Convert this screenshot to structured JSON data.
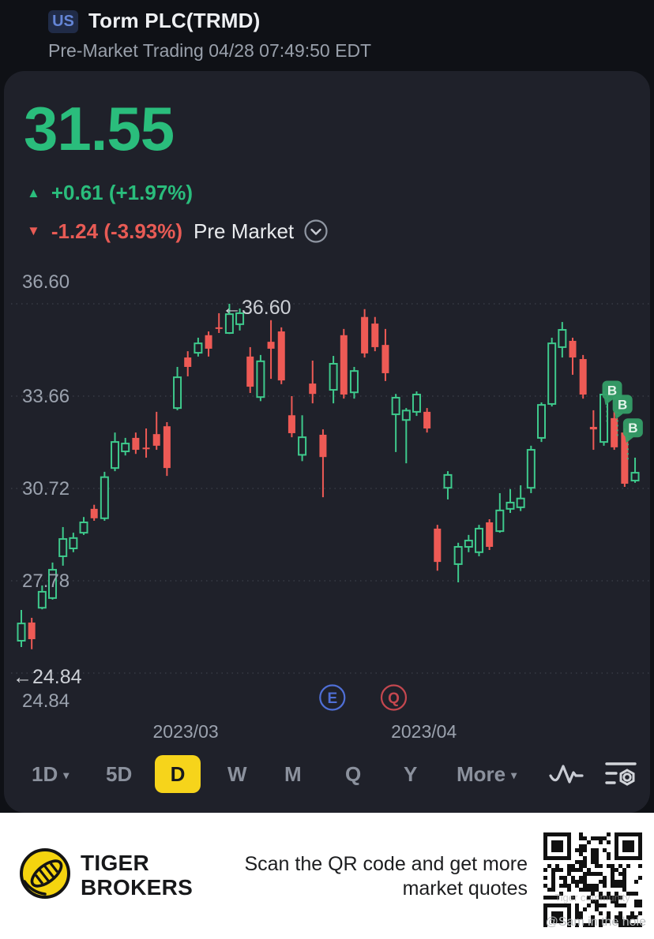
{
  "header": {
    "market_badge": "US",
    "title": "Torm PLC(TRMD)",
    "subtitle": "Pre-Market Trading 04/28 07:49:50 EDT"
  },
  "quote": {
    "price": "31.55",
    "change_text": "+0.61 (+1.97%)",
    "premarket_change_text": "-1.24 (-3.93%)",
    "premarket_label": "Pre Market"
  },
  "glyphs": {
    "up": "▲",
    "down": "▼",
    "caret": "▾"
  },
  "colors": {
    "green": "#2abd7c",
    "red": "#e85b55",
    "candle_green": "#3ec98c",
    "candle_red": "#ee5a55",
    "grid": "#3a3e48",
    "axis_text": "#9ba2ae",
    "annotation_text": "#cdd0d6",
    "marker_green": "#359e67",
    "event_e": "#4f6fd6",
    "event_q": "#c4474f",
    "selected_yellow": "#f6d41b"
  },
  "chart_data": {
    "type": "candlestick",
    "timeframe": "D",
    "grid_on": true,
    "y_axis_labels": [
      "36.60",
      "33.66",
      "30.72",
      "27.78",
      "24.84"
    ],
    "grid_values": [
      36.6,
      33.66,
      30.72,
      27.78,
      24.84
    ],
    "ylim": [
      24.84,
      36.6
    ],
    "high_annotation": "←36.60",
    "low_annotation": "←24.84",
    "bottom_axis_label": "24.84",
    "x_axis_labels": [
      {
        "label": "2023/03",
        "index": 15.8
      },
      {
        "label": "2023/04",
        "index": 38.7
      }
    ],
    "event_badges": [
      {
        "letter": "E",
        "index": 29.9
      },
      {
        "letter": "Q",
        "index": 35.8
      }
    ],
    "buy_markers": [
      {
        "label": "B",
        "index": 56,
        "price": 33.85
      },
      {
        "label": "B",
        "index": 57,
        "price": 33.4
      },
      {
        "label": "B",
        "index": 58,
        "price": 32.65
      }
    ],
    "candles": [
      [
        25.87,
        26.85,
        25.67,
        26.42
      ],
      [
        26.45,
        26.6,
        25.6,
        25.92
      ],
      [
        26.92,
        27.63,
        26.87,
        27.43
      ],
      [
        27.23,
        28.36,
        27.18,
        28.13
      ],
      [
        28.56,
        29.49,
        28.26,
        29.11
      ],
      [
        28.81,
        29.31,
        28.69,
        29.14
      ],
      [
        29.31,
        29.81,
        29.24,
        29.64
      ],
      [
        30.07,
        30.2,
        29.69,
        29.77
      ],
      [
        29.77,
        31.25,
        29.69,
        31.08
      ],
      [
        31.37,
        32.5,
        31.27,
        32.2
      ],
      [
        31.9,
        32.33,
        31.77,
        32.15
      ],
      [
        32.33,
        32.5,
        31.82,
        31.95
      ],
      [
        32.02,
        32.63,
        31.7,
        31.97
      ],
      [
        32.45,
        33.16,
        31.95,
        32.08
      ],
      [
        32.7,
        32.83,
        31.12,
        31.37
      ],
      [
        33.28,
        34.59,
        33.21,
        34.26
      ],
      [
        34.89,
        35.09,
        34.29,
        34.59
      ],
      [
        35.04,
        35.52,
        34.92,
        35.34
      ],
      [
        35.6,
        35.72,
        34.92,
        35.17
      ],
      [
        35.85,
        36.3,
        35.67,
        35.8
      ],
      [
        35.67,
        36.6,
        35.64,
        36.27
      ],
      [
        35.95,
        36.45,
        35.75,
        36.3
      ],
      [
        34.92,
        35.22,
        33.76,
        33.96
      ],
      [
        33.63,
        34.97,
        33.5,
        34.77
      ],
      [
        35.39,
        36.08,
        34.21,
        35.17
      ],
      [
        35.72,
        35.85,
        34.04,
        34.16
      ],
      [
        33.05,
        33.66,
        32.35,
        32.48
      ],
      [
        31.79,
        33.05,
        31.59,
        32.35
      ],
      [
        34.06,
        34.79,
        33.43,
        33.73
      ],
      [
        32.43,
        32.6,
        30.44,
        31.72
      ],
      [
        33.86,
        34.94,
        33.43,
        34.69
      ],
      [
        35.6,
        35.8,
        33.58,
        33.71
      ],
      [
        33.78,
        34.59,
        33.58,
        34.46
      ],
      [
        36.18,
        36.43,
        34.89,
        35.02
      ],
      [
        35.97,
        36.18,
        35.09,
        35.22
      ],
      [
        35.29,
        35.8,
        34.14,
        34.39
      ],
      [
        33.08,
        33.73,
        31.88,
        33.61
      ],
      [
        32.9,
        33.28,
        31.52,
        33.2
      ],
      [
        33.16,
        33.81,
        33.03,
        33.71
      ],
      [
        33.16,
        33.28,
        32.5,
        32.63
      ],
      [
        29.44,
        29.56,
        28.1,
        28.38
      ],
      [
        30.74,
        31.27,
        30.37,
        31.15
      ],
      [
        28.31,
        28.99,
        27.73,
        28.86
      ],
      [
        28.86,
        29.24,
        28.69,
        29.06
      ],
      [
        28.69,
        29.56,
        28.56,
        29.44
      ],
      [
        29.64,
        29.74,
        28.76,
        28.86
      ],
      [
        29.36,
        30.57,
        29.31,
        30.02
      ],
      [
        30.07,
        30.7,
        29.94,
        30.27
      ],
      [
        30.12,
        30.82,
        30.0,
        30.4
      ],
      [
        30.74,
        32.08,
        30.57,
        31.95
      ],
      [
        32.33,
        33.46,
        32.2,
        33.38
      ],
      [
        33.41,
        35.52,
        33.33,
        35.34
      ],
      [
        35.22,
        36.02,
        34.89,
        35.77
      ],
      [
        35.42,
        35.52,
        34.34,
        34.89
      ],
      [
        34.84,
        34.97,
        33.58,
        33.71
      ],
      [
        32.68,
        33.21,
        31.95,
        32.6
      ],
      [
        32.2,
        33.83,
        32.08,
        33.71
      ],
      [
        32.96,
        33.16,
        31.95,
        32.03
      ],
      [
        32.5,
        32.63,
        30.77,
        30.87
      ],
      [
        30.97,
        31.7,
        30.9,
        31.22
      ]
    ]
  },
  "toolbar": {
    "items": [
      {
        "label": "1D",
        "has_dropdown": true,
        "selected": false
      },
      {
        "label": "5D",
        "has_dropdown": false,
        "selected": false
      },
      {
        "label": "D",
        "has_dropdown": false,
        "selected": true
      },
      {
        "label": "W",
        "has_dropdown": false,
        "selected": false
      },
      {
        "label": "M",
        "has_dropdown": false,
        "selected": false
      },
      {
        "label": "Q",
        "has_dropdown": false,
        "selected": false
      },
      {
        "label": "Y",
        "has_dropdown": false,
        "selected": false
      },
      {
        "label": "More",
        "has_dropdown": true,
        "selected": false
      }
    ],
    "icons": [
      "line-chart-icon",
      "indicator-settings-icon"
    ]
  },
  "footer": {
    "brand_line1": "TIGER",
    "brand_line2": "BROKERS",
    "message_line1": "Scan the QR code and get more",
    "message_line2": "market quotes",
    "watermark": "@Sam in the hole",
    "qr_watermark": "Tiger community"
  }
}
